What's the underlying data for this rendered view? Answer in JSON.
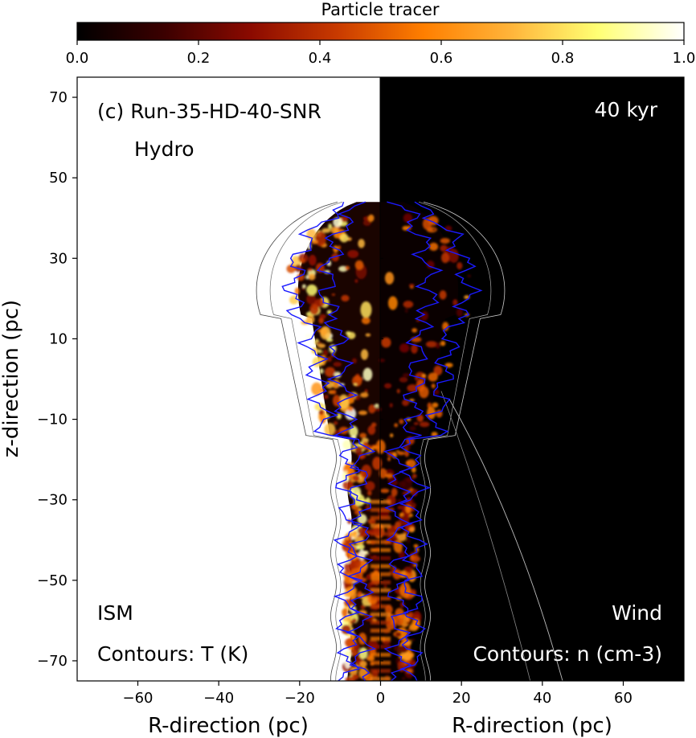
{
  "chart_data": {
    "type": "heatmap",
    "colorbar": {
      "label": "Particle tracer",
      "ticks": [
        0.0,
        0.2,
        0.4,
        0.6,
        0.8,
        1.0
      ],
      "tick_labels": [
        "0.0",
        "0.2",
        "0.4",
        "0.6",
        "0.8",
        "1.0"
      ],
      "range": [
        0.0,
        1.0
      ],
      "colormap_stops": [
        "#000000",
        "#3b0000",
        "#8b0a00",
        "#c83a00",
        "#ff7f00",
        "#ffb43a",
        "#ffff73",
        "#ffffff"
      ]
    },
    "x_axis": {
      "xlabel_left": "R-direction (pc)",
      "xlabel_right": "R-direction (pc)",
      "range": [
        -75,
        75
      ],
      "ticks": [
        -60,
        -40,
        -20,
        0,
        20,
        40,
        60
      ],
      "tick_labels": [
        "−60",
        "−40",
        "−20",
        "0",
        "20",
        "40",
        "60"
      ]
    },
    "y_axis": {
      "ylabel": "z-direction (pc)",
      "range": [
        -75,
        75
      ],
      "ticks": [
        70,
        50,
        30,
        10,
        -10,
        -30,
        -50,
        -70
      ],
      "tick_labels": [
        "70",
        "50",
        "30",
        "10",
        "−10",
        "−30",
        "−50",
        "−70"
      ]
    },
    "annotations": {
      "run": "(c) Run-35-HD-40-SNR",
      "physics": "Hydro",
      "time": "40 kyr",
      "left_region": "ISM",
      "right_region": "Wind",
      "left_contours": "Contours: T (K)",
      "right_contours": "Contours: n (cm-3)"
    },
    "panels": {
      "left_background": "#ffffff",
      "right_background": "#000000",
      "contour_color_inner": "#1a1aff",
      "contour_color_outer": "#444444"
    }
  }
}
